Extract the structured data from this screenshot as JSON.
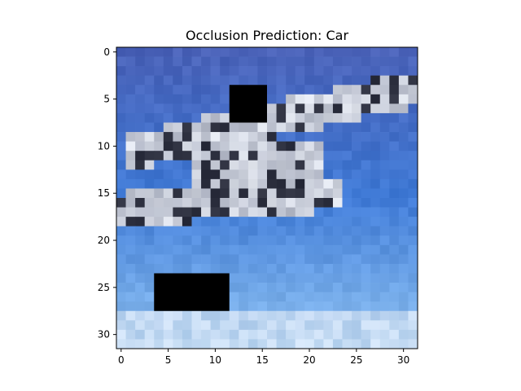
{
  "chart_data": {
    "type": "heatmap",
    "title": "Occlusion Prediction: Car",
    "xlabel": "",
    "ylabel": "",
    "image_size": [
      32,
      32
    ],
    "x_ticks": [
      0,
      5,
      10,
      15,
      20,
      25,
      30
    ],
    "y_ticks": [
      0,
      5,
      10,
      15,
      20,
      25,
      30
    ],
    "x_tick_labels": [
      "0",
      "5",
      "10",
      "15",
      "20",
      "25",
      "30"
    ],
    "y_tick_labels": [
      "0",
      "5",
      "10",
      "15",
      "20",
      "25",
      "30"
    ],
    "xlim": [
      -0.5,
      31.5
    ],
    "ylim": [
      31.5,
      -0.5
    ],
    "occlusion_patches": [
      {
        "col_start": 12,
        "col_end": 15,
        "row_start": 4,
        "row_end": 7,
        "color": "#000000"
      },
      {
        "col_start": 4,
        "col_end": 11,
        "row_start": 24,
        "row_end": 27,
        "color": "#000000"
      }
    ],
    "image_description_colors": {
      "sky_top": "#4a62b8",
      "sky_mid": "#3f7ad6",
      "sky_bottom": "#8ec2f2",
      "plane_light": "#e8ecf4",
      "plane_mid": "#8f95a8",
      "plane_dark": "#2c2f3e"
    }
  }
}
